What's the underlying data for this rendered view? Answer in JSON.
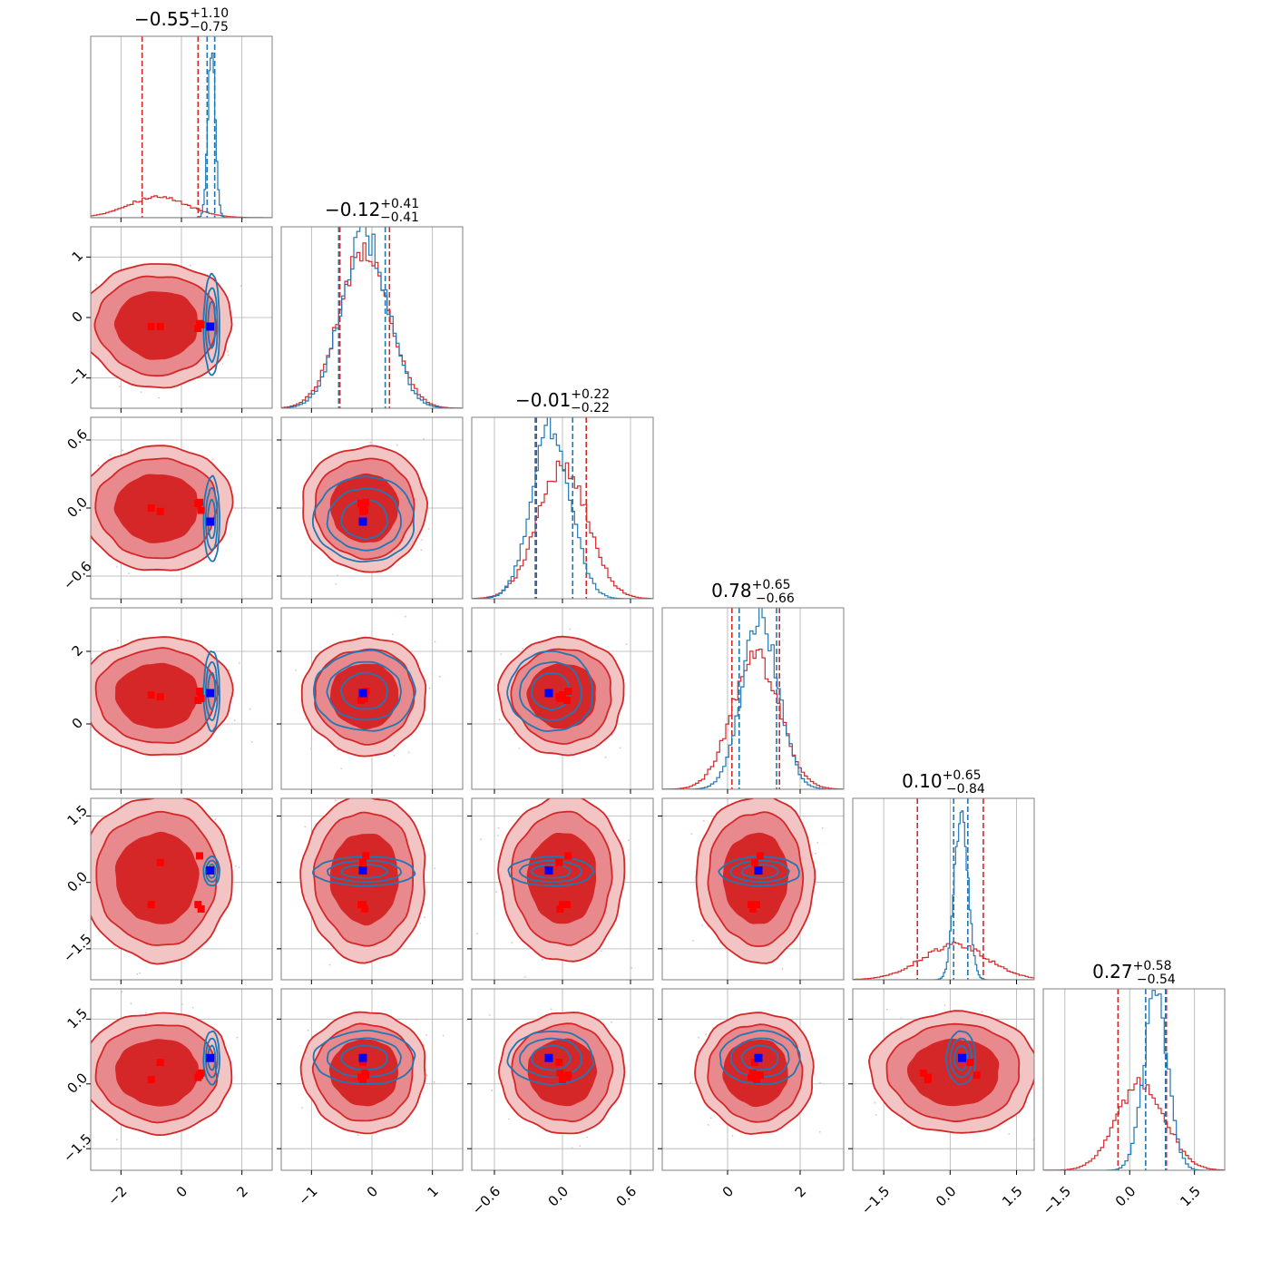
{
  "chart_data": {
    "type": "corner",
    "grid": true,
    "colors": {
      "red": "#d62728",
      "blue": "#1f77b4",
      "red_marker": "#ff0000",
      "blue_marker": "#0000ff",
      "red_fill_1": "#f3c4c4",
      "red_fill_2": "#e88a8d",
      "red_fill_3": "#d62728"
    },
    "params": [
      {
        "title_value": "−0.55",
        "title_plus": "+1.10",
        "title_minus": "−0.75",
        "range": [
          -3.0,
          3.0
        ],
        "ticks": [
          -2,
          0,
          2
        ],
        "tick_labels": [
          "−2",
          "0",
          "2"
        ],
        "red": {
          "mean": -0.8,
          "sd": 1.0,
          "q": [
            -1.3,
            0.55
          ]
        },
        "blue": {
          "mean": 1.0,
          "sd": 0.12,
          "q": [
            0.85,
            1.1
          ]
        }
      },
      {
        "title_value": "−0.12",
        "title_plus": "+0.41",
        "title_minus": "−0.41",
        "range": [
          -1.5,
          1.5
        ],
        "ticks": [
          -1,
          0,
          1
        ],
        "tick_labels": [
          "−1",
          "0",
          "1"
        ],
        "red": {
          "mean": -0.12,
          "sd": 0.41,
          "q": [
            -0.53,
            0.29
          ]
        },
        "blue": {
          "mean": -0.12,
          "sd": 0.38,
          "q": [
            -0.55,
            0.22
          ]
        }
      },
      {
        "title_value": "−0.01",
        "title_plus": "+0.22",
        "title_minus": "−0.22",
        "range": [
          -0.8,
          0.8
        ],
        "ticks": [
          -0.6,
          0.0,
          0.6
        ],
        "tick_labels": [
          "−0.6",
          "0.0",
          "0.6"
        ],
        "red": {
          "mean": 0.0,
          "sd": 0.22,
          "q": [
            -0.23,
            0.21
          ]
        },
        "blue": {
          "mean": -0.1,
          "sd": 0.17,
          "q": [
            -0.24,
            0.09
          ]
        }
      },
      {
        "title_value": "0.78",
        "title_plus": "+0.65",
        "title_minus": "−0.66",
        "range": [
          -1.8,
          3.2
        ],
        "ticks": [
          0,
          2
        ],
        "tick_labels": [
          "0",
          "2"
        ],
        "red": {
          "mean": 0.78,
          "sd": 0.65,
          "q": [
            0.12,
            1.43
          ]
        },
        "blue": {
          "mean": 0.9,
          "sd": 0.5,
          "q": [
            0.32,
            1.35
          ]
        }
      },
      {
        "title_value": "0.10",
        "title_plus": "+0.65",
        "title_minus": "−0.84",
        "range": [
          -2.2,
          1.9
        ],
        "ticks": [
          -1.5,
          0.0,
          1.5
        ],
        "tick_labels": [
          "−1.5",
          "0.0",
          "1.5"
        ],
        "red": {
          "mean": 0.1,
          "sd": 0.75,
          "q": [
            -0.74,
            0.75
          ]
        },
        "blue": {
          "mean": 0.25,
          "sd": 0.15,
          "q": [
            0.08,
            0.4
          ]
        }
      },
      {
        "title_value": "0.27",
        "title_plus": "+0.58",
        "title_minus": "−0.54",
        "range": [
          -2.0,
          2.2
        ],
        "ticks": [
          -1.5,
          0.0,
          1.5
        ],
        "tick_labels": [
          "−1.5",
          "0.0",
          "1.5"
        ],
        "red": {
          "mean": 0.27,
          "sd": 0.56,
          "q": [
            -0.27,
            0.85
          ]
        },
        "blue": {
          "mean": 0.6,
          "sd": 0.28,
          "q": [
            0.37,
            0.83
          ]
        }
      }
    ],
    "blue_marker": [
      0.95,
      -0.15,
      -0.12,
      0.85,
      0.27,
      0.6
    ],
    "red_markers": [
      [
        -1.0,
        -0.15,
        0.0,
        0.8,
        -0.5,
        0.1
      ],
      [
        -0.7,
        -0.15,
        -0.03,
        0.75,
        0.45,
        0.5
      ],
      [
        0.6,
        -0.1,
        0.05,
        0.9,
        0.6,
        0.2
      ],
      [
        0.65,
        -0.12,
        -0.02,
        0.7,
        -0.6,
        0.25
      ],
      [
        0.55,
        -0.18,
        0.04,
        0.65,
        -0.5,
        0.15
      ]
    ]
  }
}
